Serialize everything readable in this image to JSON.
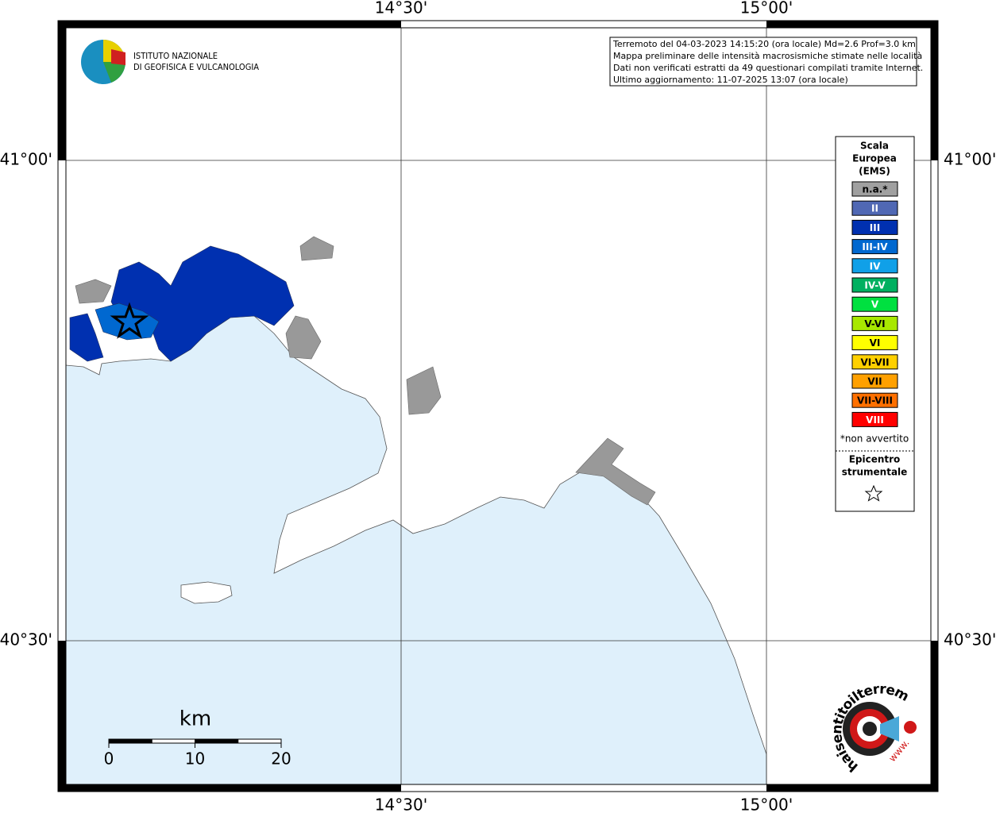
{
  "axes": {
    "top": [
      "14°30'",
      "15°00'"
    ],
    "bottom": [
      "14°30'",
      "15°00'"
    ],
    "left": [
      "41°00'",
      "40°30'"
    ],
    "right": [
      "41°00'",
      "40°30'"
    ]
  },
  "logo": {
    "line1": "ISTITUTO NAZIONALE",
    "line2": "DI GEOFISICA E VULCANOLOGIA"
  },
  "info": {
    "lines": [
      "Terremoto del 04-03-2023 14:15:20 (ora locale) Md=2.6 Prof=3.0 km",
      "Mappa preliminare delle intensità macrosismiche stimate nelle località",
      "Dati non verificati estratti da 49 questionari compilati tramite Internet.",
      "Ultimo aggiornamento: 11-07-2025 13:07 (ora locale)"
    ]
  },
  "legend": {
    "title": [
      "Scala",
      "Europea",
      "(EMS)"
    ],
    "items": [
      {
        "label": "n.a.*",
        "color": "#a0a0a0"
      },
      {
        "label": "II",
        "color": "#5068b4"
      },
      {
        "label": "III",
        "color": "#0030b0"
      },
      {
        "label": "III-IV",
        "color": "#0068d0"
      },
      {
        "label": "IV",
        "color": "#10a0e8"
      },
      {
        "label": "IV-V",
        "color": "#00b060"
      },
      {
        "label": "V",
        "color": "#00e040"
      },
      {
        "label": "V-VI",
        "color": "#a8e800"
      },
      {
        "label": "VI",
        "color": "#ffff00"
      },
      {
        "label": "VI-VII",
        "color": "#ffd000"
      },
      {
        "label": "VII",
        "color": "#ffa000"
      },
      {
        "label": "VII-VIII",
        "color": "#ff7000"
      },
      {
        "label": "VIII",
        "color": "#ff0000"
      }
    ],
    "note": "*non avvertito",
    "epicenter": [
      "Epicentro",
      "strumentale"
    ]
  },
  "scale_bar": {
    "unit": "km",
    "ticks": [
      0,
      10,
      20
    ]
  },
  "badge": {
    "text": "haisentitoilterremoto.it",
    "www": "www."
  }
}
